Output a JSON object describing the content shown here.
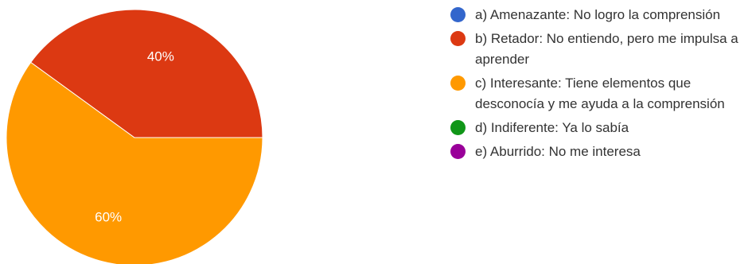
{
  "chart_data": {
    "type": "pie",
    "title": "",
    "legend_position": "right",
    "slices": [
      {
        "label": "a) Amenazante: No logro la comprensión",
        "value": 0,
        "color": "#3366cc",
        "display_label": ""
      },
      {
        "label": "b) Retador: No entiendo, pero me impulsa a aprender",
        "value": 40,
        "color": "#dc3912",
        "display_label": "40%"
      },
      {
        "label": "c) Interesante: Tiene elementos que desconocía y me ayuda a la comprensión",
        "value": 60,
        "color": "#ff9900",
        "display_label": "60%"
      },
      {
        "label": "d) Indiferente: Ya lo sabía",
        "value": 0,
        "color": "#109618",
        "display_label": ""
      },
      {
        "label": "e) Aburrido: No me interesa",
        "value": 0,
        "color": "#990099",
        "display_label": ""
      }
    ]
  }
}
